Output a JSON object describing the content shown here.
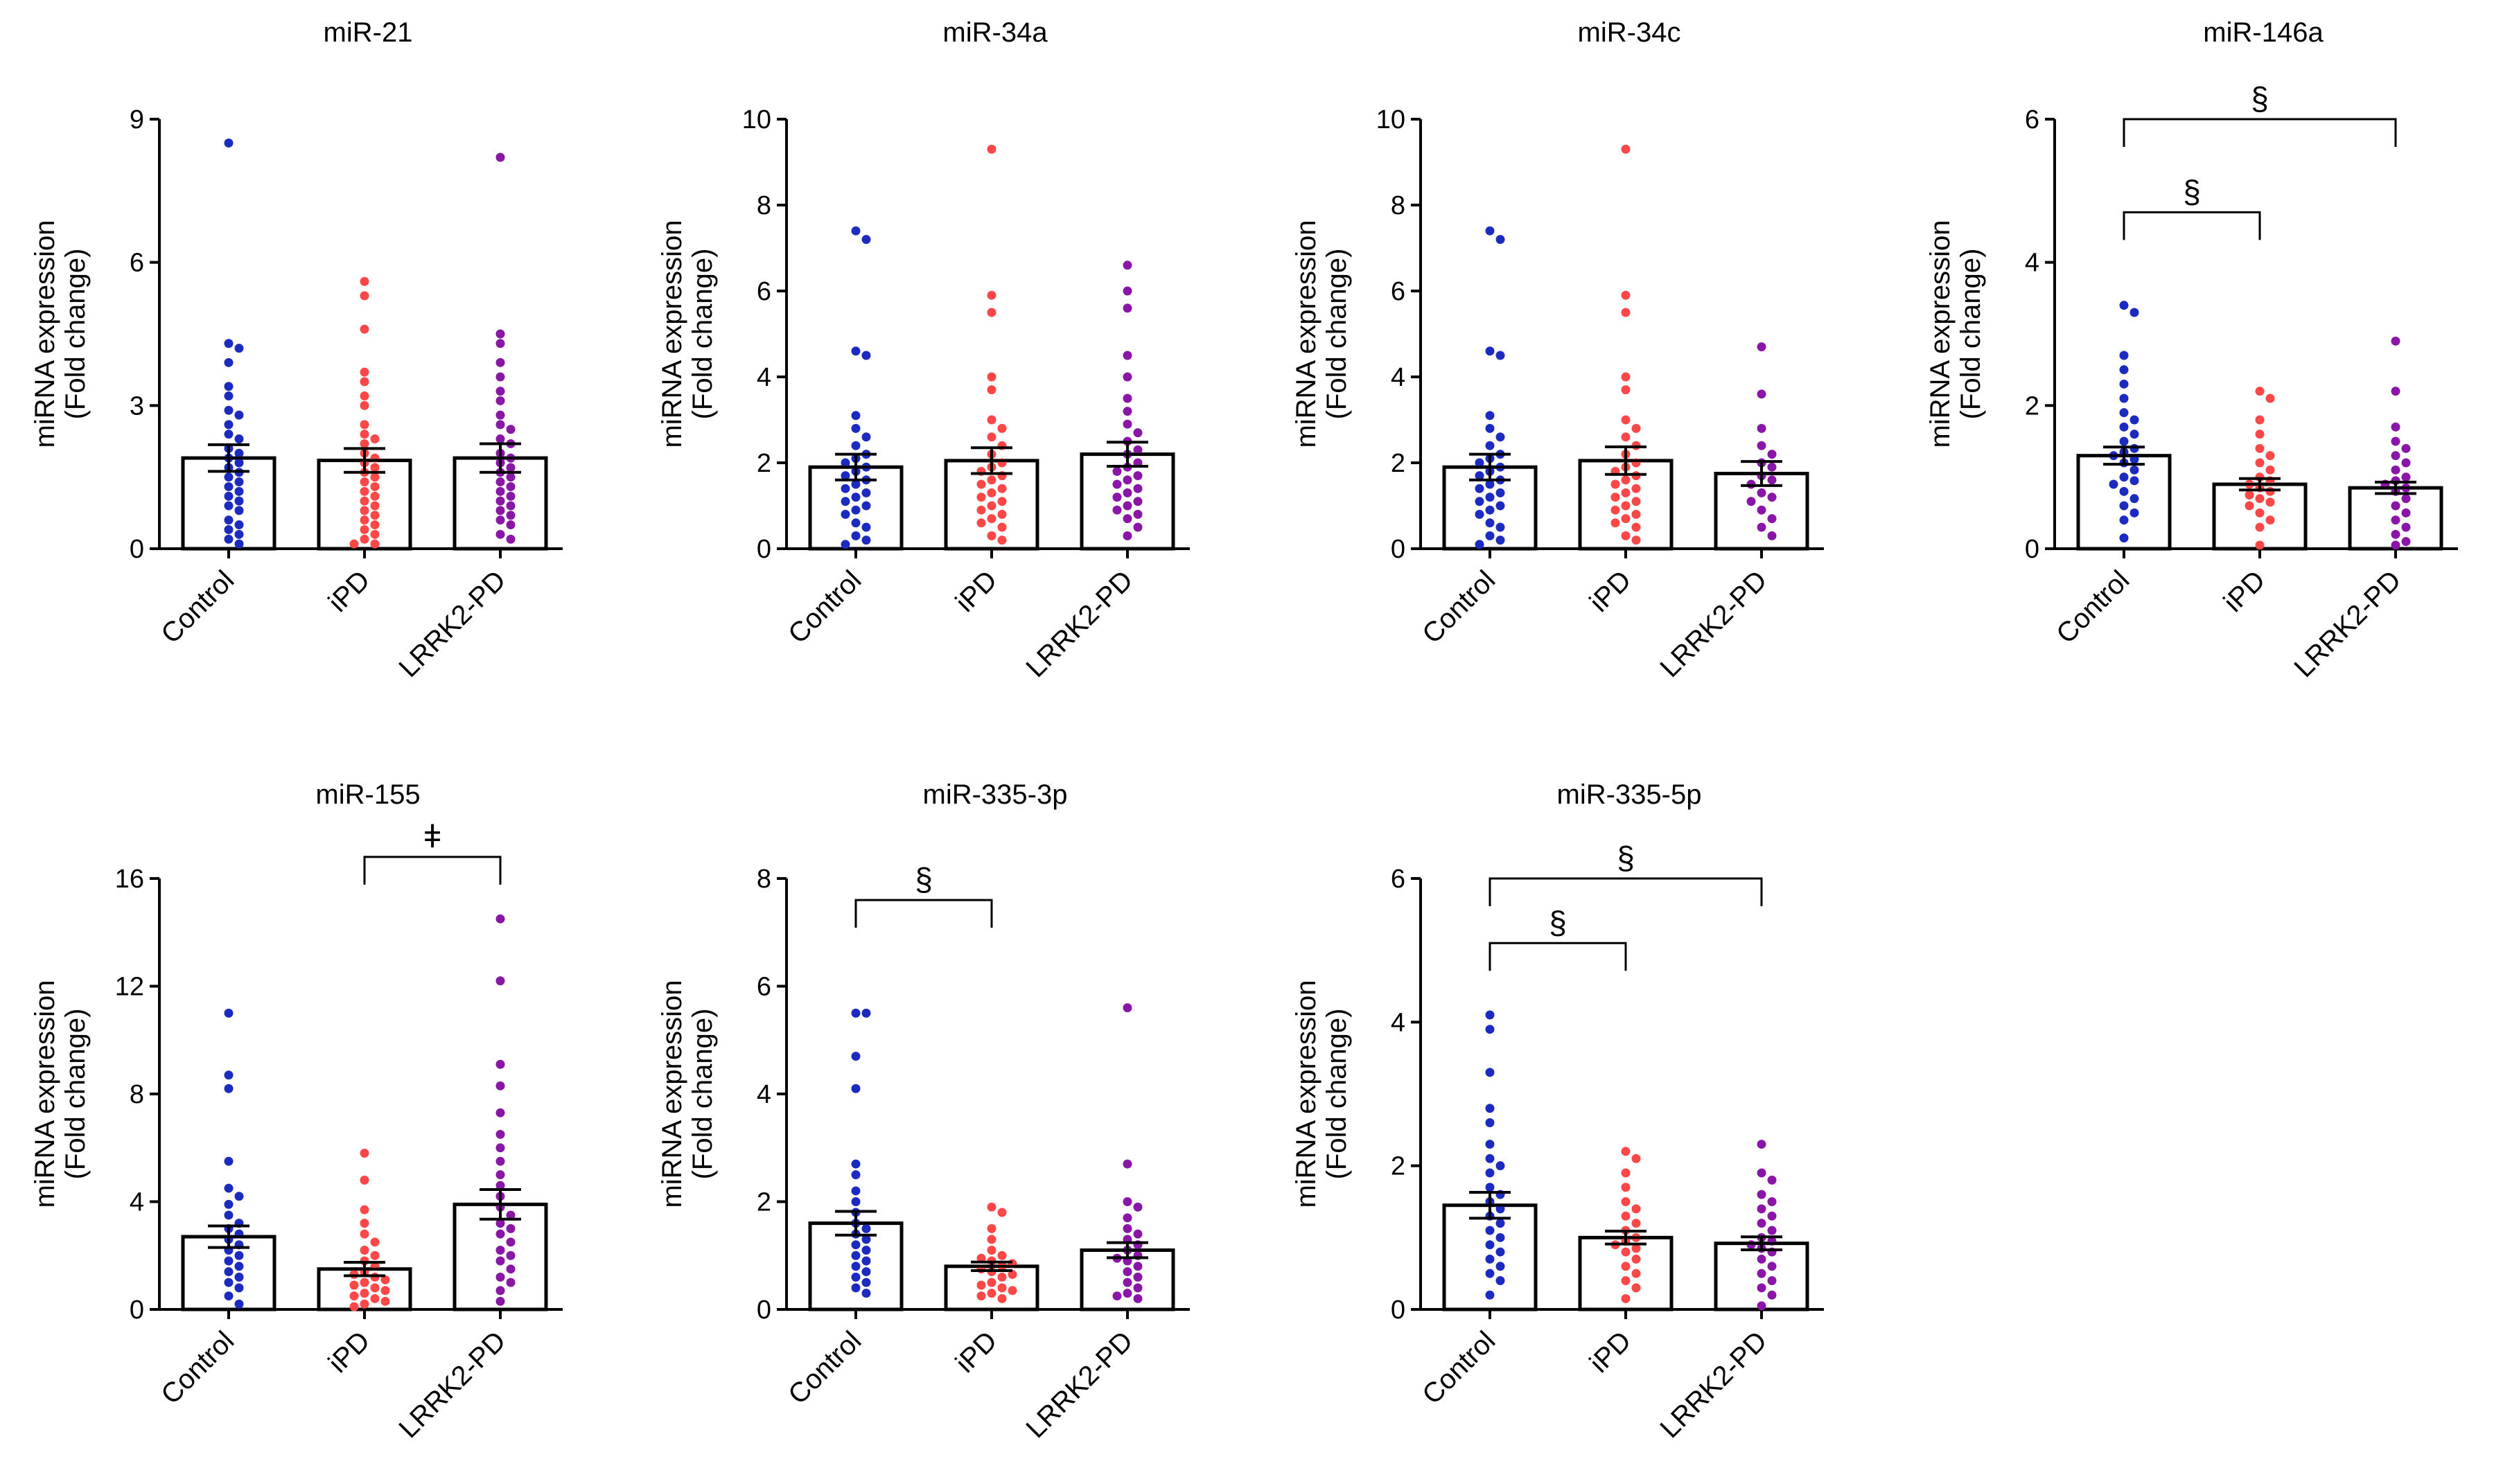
{
  "figure": {
    "categories": [
      "Control",
      "iPD",
      "LRRK2-PD"
    ],
    "ylabel_line1": "miRNA expression",
    "ylabel_line2": "(Fold change)",
    "colors": {
      "Control": "#1c2bbf",
      "iPD": "#ff4747",
      "LRRK2-PD": "#8a16a8",
      "axis": "#000000",
      "bar_fill": "#ffffff"
    }
  },
  "chart_data": [
    {
      "type": "bar",
      "title": "miR-21",
      "ylim": [
        0,
        9
      ],
      "yticks": [
        0,
        3,
        6,
        9
      ],
      "means": [
        1.9,
        1.85,
        1.9
      ],
      "sem": [
        0.28,
        0.25,
        0.3
      ],
      "points": [
        [
          8.5,
          4.3,
          4.2,
          3.9,
          3.4,
          3.2,
          2.9,
          2.8,
          2.6,
          2.4,
          2.3,
          2.1,
          2.0,
          1.9,
          1.8,
          1.7,
          1.6,
          1.5,
          1.4,
          1.3,
          1.2,
          1.1,
          1.0,
          0.9,
          0.8,
          0.6,
          0.5,
          0.4,
          0.3,
          0.2,
          0.1
        ],
        [
          5.6,
          5.3,
          4.6,
          3.7,
          3.5,
          3.2,
          3.0,
          2.6,
          2.4,
          2.3,
          2.2,
          2.0,
          1.9,
          1.8,
          1.7,
          1.6,
          1.5,
          1.4,
          1.3,
          1.2,
          1.1,
          1.0,
          0.9,
          0.8,
          0.7,
          0.6,
          0.5,
          0.4,
          0.3,
          0.2,
          0.1,
          0.1
        ],
        [
          8.2,
          4.5,
          4.3,
          3.9,
          3.6,
          3.3,
          3.1,
          2.8,
          2.6,
          2.5,
          2.3,
          2.2,
          2.0,
          1.9,
          1.8,
          1.7,
          1.6,
          1.5,
          1.4,
          1.3,
          1.2,
          1.1,
          1.0,
          0.9,
          0.8,
          0.7,
          0.6,
          0.5,
          0.3,
          0.2
        ]
      ],
      "brackets": []
    },
    {
      "type": "bar",
      "title": "miR-34a",
      "ylim": [
        0,
        10
      ],
      "yticks": [
        0,
        2,
        4,
        6,
        8,
        10
      ],
      "means": [
        1.9,
        2.05,
        2.2
      ],
      "sem": [
        0.3,
        0.3,
        0.28
      ],
      "points": [
        [
          7.4,
          7.2,
          4.6,
          4.5,
          3.1,
          2.8,
          2.6,
          2.4,
          2.2,
          2.1,
          2.0,
          1.9,
          1.8,
          1.7,
          1.6,
          1.5,
          1.4,
          1.3,
          1.2,
          1.1,
          1.0,
          0.9,
          0.8,
          0.6,
          0.5,
          0.3,
          0.2,
          0.1
        ],
        [
          9.3,
          5.9,
          5.5,
          4.0,
          3.7,
          3.0,
          2.8,
          2.6,
          2.4,
          2.2,
          2.0,
          1.9,
          1.8,
          1.7,
          1.6,
          1.5,
          1.4,
          1.3,
          1.2,
          1.1,
          1.0,
          0.9,
          0.8,
          0.7,
          0.6,
          0.5,
          0.3,
          0.2
        ],
        [
          6.6,
          6.0,
          5.6,
          4.5,
          4.0,
          3.5,
          3.2,
          2.9,
          2.7,
          2.5,
          2.3,
          2.2,
          2.0,
          1.9,
          1.8,
          1.7,
          1.6,
          1.5,
          1.4,
          1.3,
          1.2,
          1.1,
          1.0,
          0.9,
          0.8,
          0.7,
          0.5,
          0.3
        ]
      ],
      "brackets": []
    },
    {
      "type": "bar",
      "title": "miR-34c",
      "ylim": [
        0,
        10
      ],
      "yticks": [
        0,
        2,
        4,
        6,
        8,
        10
      ],
      "means": [
        1.9,
        2.05,
        1.75
      ],
      "sem": [
        0.3,
        0.32,
        0.28
      ],
      "points": [
        [
          7.4,
          7.2,
          4.6,
          4.5,
          3.1,
          2.8,
          2.6,
          2.4,
          2.2,
          2.1,
          2.0,
          1.9,
          1.8,
          1.7,
          1.6,
          1.5,
          1.4,
          1.3,
          1.2,
          1.1,
          1.0,
          0.9,
          0.8,
          0.6,
          0.5,
          0.3,
          0.2,
          0.1
        ],
        [
          9.3,
          5.9,
          5.5,
          4.0,
          3.7,
          3.0,
          2.8,
          2.6,
          2.4,
          2.2,
          2.0,
          1.9,
          1.8,
          1.7,
          1.6,
          1.5,
          1.4,
          1.3,
          1.2,
          1.1,
          1.0,
          0.9,
          0.8,
          0.7,
          0.6,
          0.5,
          0.3,
          0.2
        ],
        [
          4.7,
          3.6,
          2.8,
          2.4,
          2.2,
          2.0,
          1.9,
          1.7,
          1.6,
          1.5,
          1.3,
          1.2,
          1.1,
          0.9,
          0.7,
          0.5,
          0.3
        ]
      ],
      "brackets": []
    },
    {
      "type": "bar",
      "title": "miR-146a",
      "ylim": [
        0,
        6
      ],
      "yticks": [
        0,
        2,
        4,
        6
      ],
      "means": [
        1.3,
        0.9,
        0.85
      ],
      "sem": [
        0.12,
        0.08,
        0.08
      ],
      "points": [
        [
          3.4,
          3.3,
          2.7,
          2.5,
          2.3,
          2.1,
          1.9,
          1.8,
          1.7,
          1.6,
          1.5,
          1.4,
          1.35,
          1.3,
          1.25,
          1.2,
          1.1,
          1.0,
          0.95,
          0.9,
          0.8,
          0.7,
          0.6,
          0.5,
          0.4,
          0.15
        ],
        [
          2.2,
          2.1,
          1.8,
          1.6,
          1.4,
          1.3,
          1.2,
          1.1,
          1.0,
          0.95,
          0.9,
          0.85,
          0.8,
          0.75,
          0.7,
          0.65,
          0.6,
          0.5,
          0.4,
          0.3,
          0.05
        ],
        [
          2.9,
          2.2,
          1.7,
          1.5,
          1.4,
          1.3,
          1.2,
          1.1,
          1.0,
          0.95,
          0.9,
          0.85,
          0.8,
          0.7,
          0.6,
          0.5,
          0.4,
          0.3,
          0.2,
          0.1,
          0.05
        ]
      ],
      "brackets": [
        {
          "from": 0,
          "to": 1,
          "y": 4.7,
          "label": "§"
        },
        {
          "from": 0,
          "to": 2,
          "y": 6.0,
          "label": "§"
        }
      ]
    },
    {
      "type": "bar",
      "title": "miR-155",
      "ylim": [
        0,
        16
      ],
      "yticks": [
        0,
        4,
        8,
        12,
        16
      ],
      "means": [
        2.7,
        1.5,
        3.9
      ],
      "sem": [
        0.4,
        0.25,
        0.55
      ],
      "points": [
        [
          11.0,
          8.7,
          8.2,
          5.5,
          4.5,
          4.2,
          3.9,
          3.5,
          3.2,
          3.0,
          2.8,
          2.6,
          2.4,
          2.2,
          2.0,
          1.8,
          1.6,
          1.4,
          1.2,
          1.0,
          0.8,
          0.5,
          0.2
        ],
        [
          5.8,
          4.8,
          3.7,
          3.2,
          2.8,
          2.5,
          2.2,
          2.0,
          1.8,
          1.6,
          1.4,
          1.3,
          1.2,
          1.1,
          1.0,
          0.9,
          0.8,
          0.7,
          0.6,
          0.5,
          0.4,
          0.3,
          0.2,
          0.1
        ],
        [
          14.5,
          12.2,
          9.1,
          8.3,
          7.3,
          6.5,
          6.0,
          5.5,
          5.0,
          4.6,
          4.2,
          3.8,
          3.5,
          3.2,
          3.0,
          2.8,
          2.5,
          2.2,
          2.0,
          1.8,
          1.5,
          1.2,
          1.0,
          0.7,
          0.3
        ]
      ],
      "brackets": [
        {
          "from": 1,
          "to": 2,
          "y": 16.8,
          "label": "ǂ"
        }
      ]
    },
    {
      "type": "bar",
      "title": "miR-335-3p",
      "ylim": [
        0,
        8
      ],
      "yticks": [
        0,
        2,
        4,
        6,
        8
      ],
      "means": [
        1.6,
        0.8,
        1.1
      ],
      "sem": [
        0.22,
        0.08,
        0.14
      ],
      "points": [
        [
          5.5,
          5.5,
          4.7,
          4.1,
          2.7,
          2.5,
          2.2,
          2.0,
          1.8,
          1.6,
          1.5,
          1.4,
          1.3,
          1.2,
          1.1,
          1.0,
          0.9,
          0.8,
          0.7,
          0.6,
          0.5,
          0.4,
          0.3
        ],
        [
          1.9,
          1.8,
          1.5,
          1.3,
          1.1,
          1.0,
          0.95,
          0.9,
          0.85,
          0.8,
          0.75,
          0.7,
          0.65,
          0.6,
          0.5,
          0.45,
          0.4,
          0.35,
          0.3,
          0.25,
          0.2
        ],
        [
          5.6,
          2.7,
          2.0,
          1.9,
          1.7,
          1.5,
          1.4,
          1.3,
          1.2,
          1.1,
          1.0,
          0.95,
          0.9,
          0.8,
          0.7,
          0.6,
          0.5,
          0.4,
          0.3,
          0.25,
          0.2
        ]
      ],
      "brackets": [
        {
          "from": 0,
          "to": 1,
          "y": 7.6,
          "label": "§"
        }
      ]
    },
    {
      "type": "bar",
      "title": "miR-335-5p",
      "ylim": [
        0,
        6
      ],
      "yticks": [
        0,
        2,
        4,
        6
      ],
      "means": [
        1.45,
        1.0,
        0.92
      ],
      "sem": [
        0.18,
        0.09,
        0.09
      ],
      "points": [
        [
          4.1,
          3.9,
          3.3,
          2.8,
          2.6,
          2.3,
          2.1,
          2.0,
          1.9,
          1.7,
          1.6,
          1.5,
          1.4,
          1.3,
          1.2,
          1.1,
          1.0,
          0.9,
          0.8,
          0.7,
          0.6,
          0.5,
          0.4,
          0.2
        ],
        [
          2.2,
          2.1,
          1.9,
          1.7,
          1.5,
          1.4,
          1.3,
          1.2,
          1.1,
          1.0,
          0.95,
          0.9,
          0.85,
          0.8,
          0.7,
          0.6,
          0.5,
          0.4,
          0.3,
          0.15
        ],
        [
          2.3,
          1.9,
          1.8,
          1.6,
          1.5,
          1.4,
          1.3,
          1.2,
          1.1,
          1.0,
          0.95,
          0.9,
          0.85,
          0.8,
          0.7,
          0.6,
          0.5,
          0.4,
          0.3,
          0.2,
          0.05
        ]
      ],
      "brackets": [
        {
          "from": 0,
          "to": 1,
          "y": 5.1,
          "label": "§"
        },
        {
          "from": 0,
          "to": 2,
          "y": 6.0,
          "label": "§"
        }
      ]
    }
  ]
}
